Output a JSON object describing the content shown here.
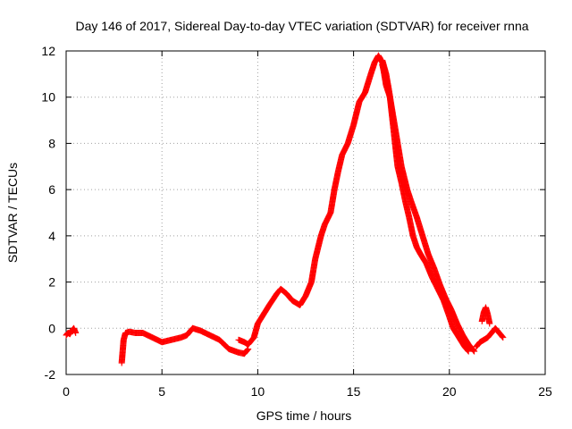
{
  "chart_data": {
    "type": "scatter",
    "title": "Day 146 of 2017, Sidereal Day-to-day VTEC variation (SDTVAR) for receiver rnna",
    "xlabel": "GPS time / hours",
    "ylabel": "SDTVAR / TECUs",
    "xlim": [
      0,
      25
    ],
    "ylim": [
      -2,
      12
    ],
    "xticks": [
      0,
      5,
      10,
      15,
      20,
      25
    ],
    "yticks": [
      -2,
      0,
      2,
      4,
      6,
      8,
      10,
      12
    ],
    "xtick_labels": [
      "0",
      "5",
      "10",
      "15",
      "20",
      "25"
    ],
    "ytick_labels": [
      "-2",
      "0",
      "2",
      "4",
      "6",
      "8",
      "10",
      "12"
    ],
    "grid": true,
    "marker": "+",
    "color": "#ff0000",
    "series": [
      {
        "name": "SDTVAR",
        "segments": [
          {
            "x": [
              0.0,
              0.1,
              0.2,
              0.3,
              0.4,
              0.5
            ],
            "y": [
              -0.3,
              -0.2,
              -0.25,
              -0.1,
              0.0,
              -0.2
            ]
          },
          {
            "x": [
              2.9,
              3.0,
              3.1,
              3.3,
              3.6,
              4.0,
              4.5,
              5.0,
              5.5,
              6.0,
              6.3,
              6.6,
              7.0,
              7.5,
              8.0,
              8.5,
              9.0,
              9.3,
              9.5
            ],
            "y": [
              -1.5,
              -0.5,
              -0.2,
              -0.15,
              -0.2,
              -0.2,
              -0.4,
              -0.6,
              -0.5,
              -0.4,
              -0.3,
              0.0,
              -0.1,
              -0.3,
              -0.5,
              -0.9,
              -1.05,
              -1.1,
              -0.9
            ]
          },
          {
            "x": [
              9.0,
              9.3,
              9.5,
              9.8,
              10.0,
              10.3,
              10.6,
              11.0,
              11.2,
              11.5,
              11.8,
              12.0,
              12.2,
              12.5,
              12.8,
              13.0,
              13.3,
              13.5,
              13.8,
              14.0,
              14.2,
              14.4,
              14.7,
              15.0,
              15.3,
              15.6,
              15.9,
              16.1,
              16.3,
              16.5,
              16.7,
              16.9
            ],
            "y": [
              -0.5,
              -0.6,
              -0.7,
              -0.4,
              0.2,
              0.6,
              1.0,
              1.5,
              1.7,
              1.5,
              1.2,
              1.1,
              1.0,
              1.4,
              2.0,
              3.0,
              4.0,
              4.5,
              5.0,
              6.0,
              6.8,
              7.5,
              8.0,
              8.8,
              9.8,
              10.2,
              11.0,
              11.5,
              11.8,
              11.5,
              10.5,
              10.0
            ]
          },
          {
            "x": [
              16.5,
              16.7,
              16.9,
              17.1,
              17.3,
              17.5,
              17.7,
              17.9,
              18.1,
              18.3,
              18.5,
              18.8,
              19.1,
              19.4,
              19.7,
              20.0,
              20.2,
              20.5,
              20.8,
              21.0
            ],
            "y": [
              11.6,
              11.0,
              10.0,
              8.5,
              7.0,
              6.3,
              5.5,
              4.8,
              4.0,
              3.5,
              3.2,
              2.8,
              2.2,
              1.7,
              1.2,
              0.5,
              0.0,
              -0.4,
              -0.8,
              -1.0
            ]
          },
          {
            "x": [
              16.5,
              16.8,
              17.0,
              17.3,
              17.5,
              17.8,
              18.0,
              18.3,
              18.6,
              18.9,
              19.2,
              19.5,
              19.8,
              20.1,
              20.4,
              20.7,
              21.0,
              21.3
            ],
            "y": [
              11.4,
              10.5,
              9.5,
              8.0,
              7.0,
              6.0,
              5.5,
              4.8,
              4.0,
              3.2,
              2.6,
              1.9,
              1.3,
              0.8,
              0.2,
              -0.3,
              -0.7,
              -1.0
            ]
          },
          {
            "x": [
              21.4,
              21.6,
              21.8,
              22.0,
              22.2,
              22.4,
              22.6,
              22.8
            ],
            "y": [
              -0.8,
              -0.6,
              -0.5,
              -0.4,
              -0.2,
              0.0,
              -0.2,
              -0.4
            ]
          },
          {
            "x": [
              21.7,
              21.8,
              21.9,
              22.0,
              22.1
            ],
            "y": [
              0.3,
              0.7,
              0.9,
              0.6,
              0.2
            ]
          }
        ]
      }
    ]
  }
}
